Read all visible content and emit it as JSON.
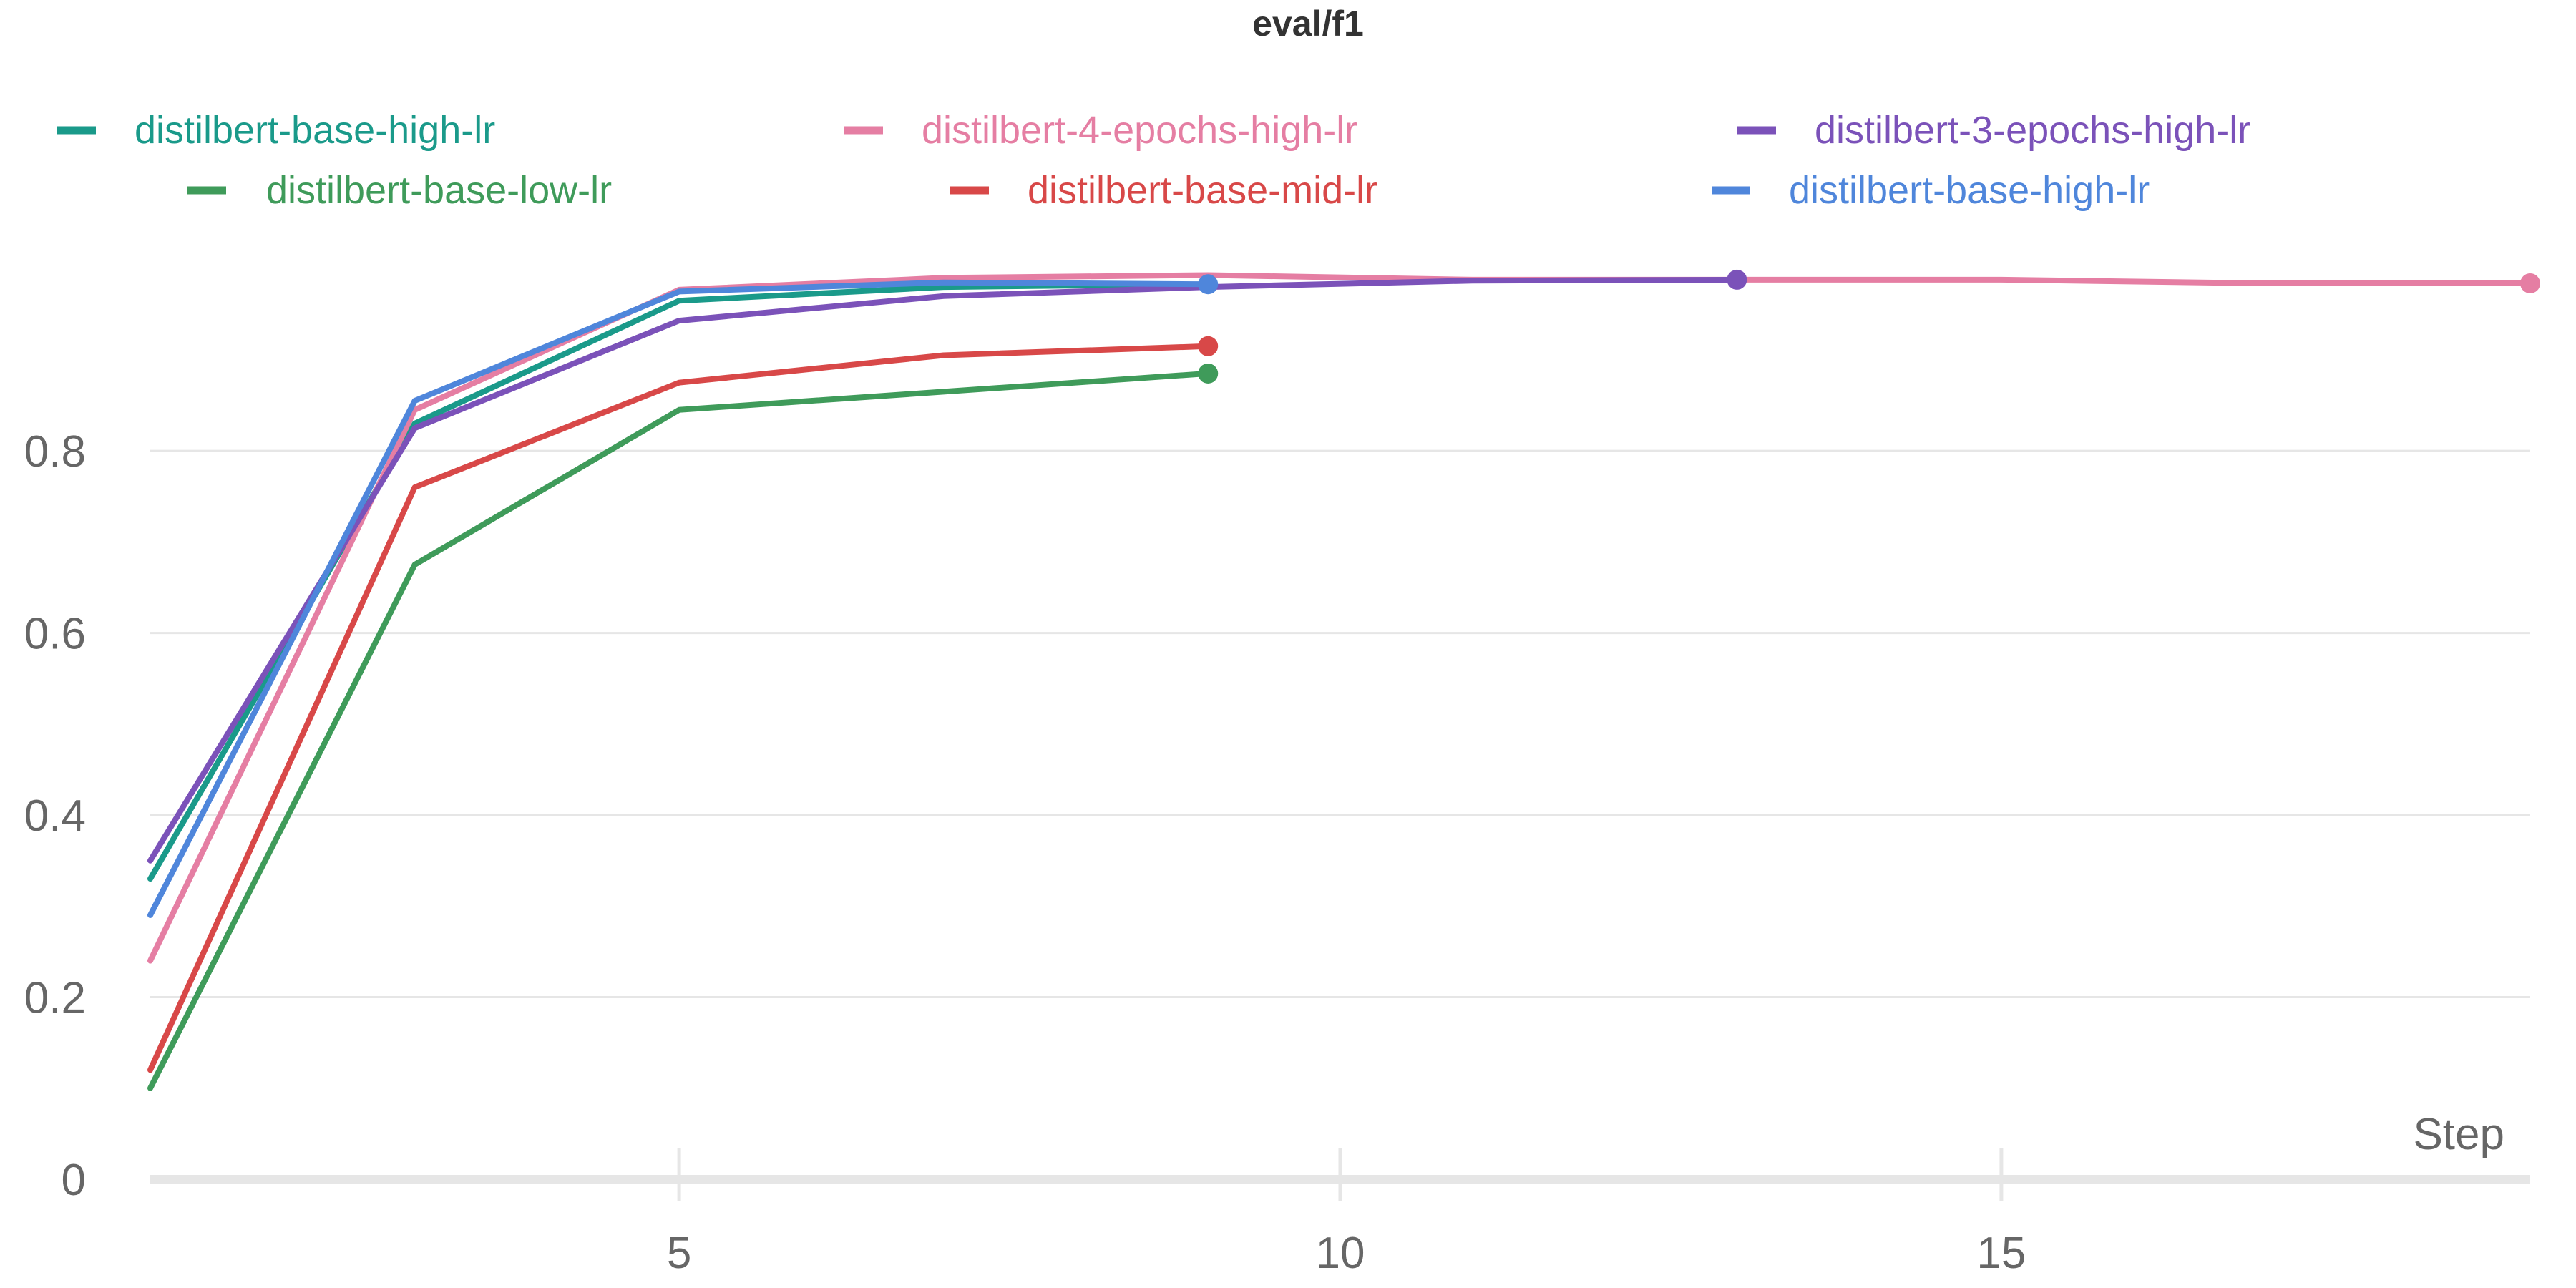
{
  "chart_data": {
    "type": "line",
    "title": "eval/f1",
    "xlabel": "Step",
    "ylabel": "",
    "xlim": [
      1,
      19
    ],
    "ylim": [
      0,
      1.05
    ],
    "x_ticks": [
      5,
      10,
      15
    ],
    "y_ticks": [
      0,
      0.2,
      0.4,
      0.6,
      0.8
    ],
    "x_tick_labels": [
      "5",
      "10",
      "15"
    ],
    "y_tick_labels": [
      "0",
      "0.2",
      "0.4",
      "0.6",
      "0.8"
    ],
    "grid": true,
    "legend_position": "top",
    "series": [
      {
        "name": "distilbert-base-high-lr",
        "color": "#1a9a8a",
        "x": [
          1,
          3,
          5,
          7,
          9
        ],
        "y": [
          0.33,
          0.83,
          0.965,
          0.98,
          0.983
        ],
        "end_marker": false
      },
      {
        "name": "distilbert-4-epochs-high-lr",
        "color": "#e57ea3",
        "x": [
          1,
          3,
          5,
          7,
          9,
          11,
          13,
          15,
          17,
          19
        ],
        "y": [
          0.24,
          0.845,
          0.977,
          0.99,
          0.993,
          0.988,
          0.988,
          0.988,
          0.984,
          0.984
        ],
        "end_marker": true
      },
      {
        "name": "distilbert-3-epochs-high-lr",
        "color": "#7b52b9",
        "x": [
          1,
          3,
          5,
          7,
          9,
          11,
          13
        ],
        "y": [
          0.35,
          0.825,
          0.943,
          0.97,
          0.98,
          0.987,
          0.988
        ],
        "end_marker": true
      },
      {
        "name": "distilbert-base-low-lr",
        "color": "#3f9b5a",
        "x": [
          1,
          3,
          5,
          7,
          9
        ],
        "y": [
          0.1,
          0.675,
          0.845,
          0.865,
          0.885
        ],
        "end_marker": true
      },
      {
        "name": "distilbert-base-mid-lr",
        "color": "#d84848",
        "x": [
          1,
          3,
          5,
          7,
          9
        ],
        "y": [
          0.12,
          0.76,
          0.875,
          0.905,
          0.915
        ],
        "end_marker": true
      },
      {
        "name": "distilbert-base-high-lr",
        "color": "#4f86db",
        "x": [
          1,
          3,
          5,
          7,
          9
        ],
        "y": [
          0.29,
          0.855,
          0.975,
          0.985,
          0.983
        ],
        "end_marker": true
      }
    ]
  }
}
